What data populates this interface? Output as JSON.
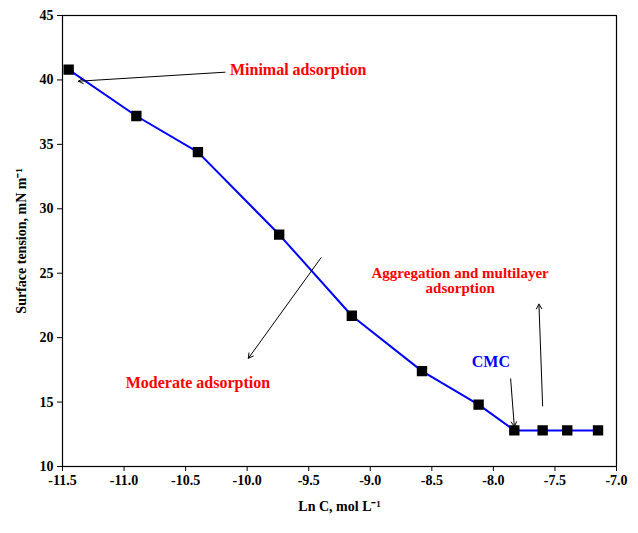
{
  "chart_data": {
    "type": "line",
    "x_label": "Ln C, mol L⁻¹",
    "y_label": "Surface tension, mN m⁻¹",
    "x": [
      -11.45,
      -10.9,
      -10.4,
      -9.74,
      -9.15,
      -8.58,
      -8.12,
      -7.83,
      -7.6,
      -7.4,
      -7.15
    ],
    "values": [
      40.8,
      37.2,
      34.4,
      28.0,
      21.7,
      17.4,
      14.8,
      12.8,
      12.8,
      12.8,
      12.8
    ],
    "color": "#0000ff",
    "marker": "square",
    "xlim": [
      -11.5,
      -7.0
    ],
    "ylim": [
      10,
      45
    ],
    "xticks": [
      -11.5,
      {
        "value": -11,
        "label": "-11.0"
      },
      -10.5,
      {
        "value": -10,
        "label": "-10.0"
      },
      -9.5,
      {
        "value": -9,
        "label": "-9.0"
      },
      -8.5,
      {
        "value": -8,
        "label": "-8.0"
      },
      -7.5,
      {
        "value": -7,
        "label": "-7.0"
      }
    ],
    "yticks": [
      10,
      15,
      20,
      25,
      30,
      35,
      40,
      45
    ],
    "annotations": [
      {
        "text": "Minimal adsorption",
        "color": "#ff0000"
      },
      {
        "text": "Moderate adsorption",
        "color": "#ff0000"
      },
      {
        "text": "Aggregation and multilayer adsorption",
        "color": "#ff0000"
      },
      {
        "text": "CMC",
        "color": "#0000ff"
      }
    ]
  }
}
